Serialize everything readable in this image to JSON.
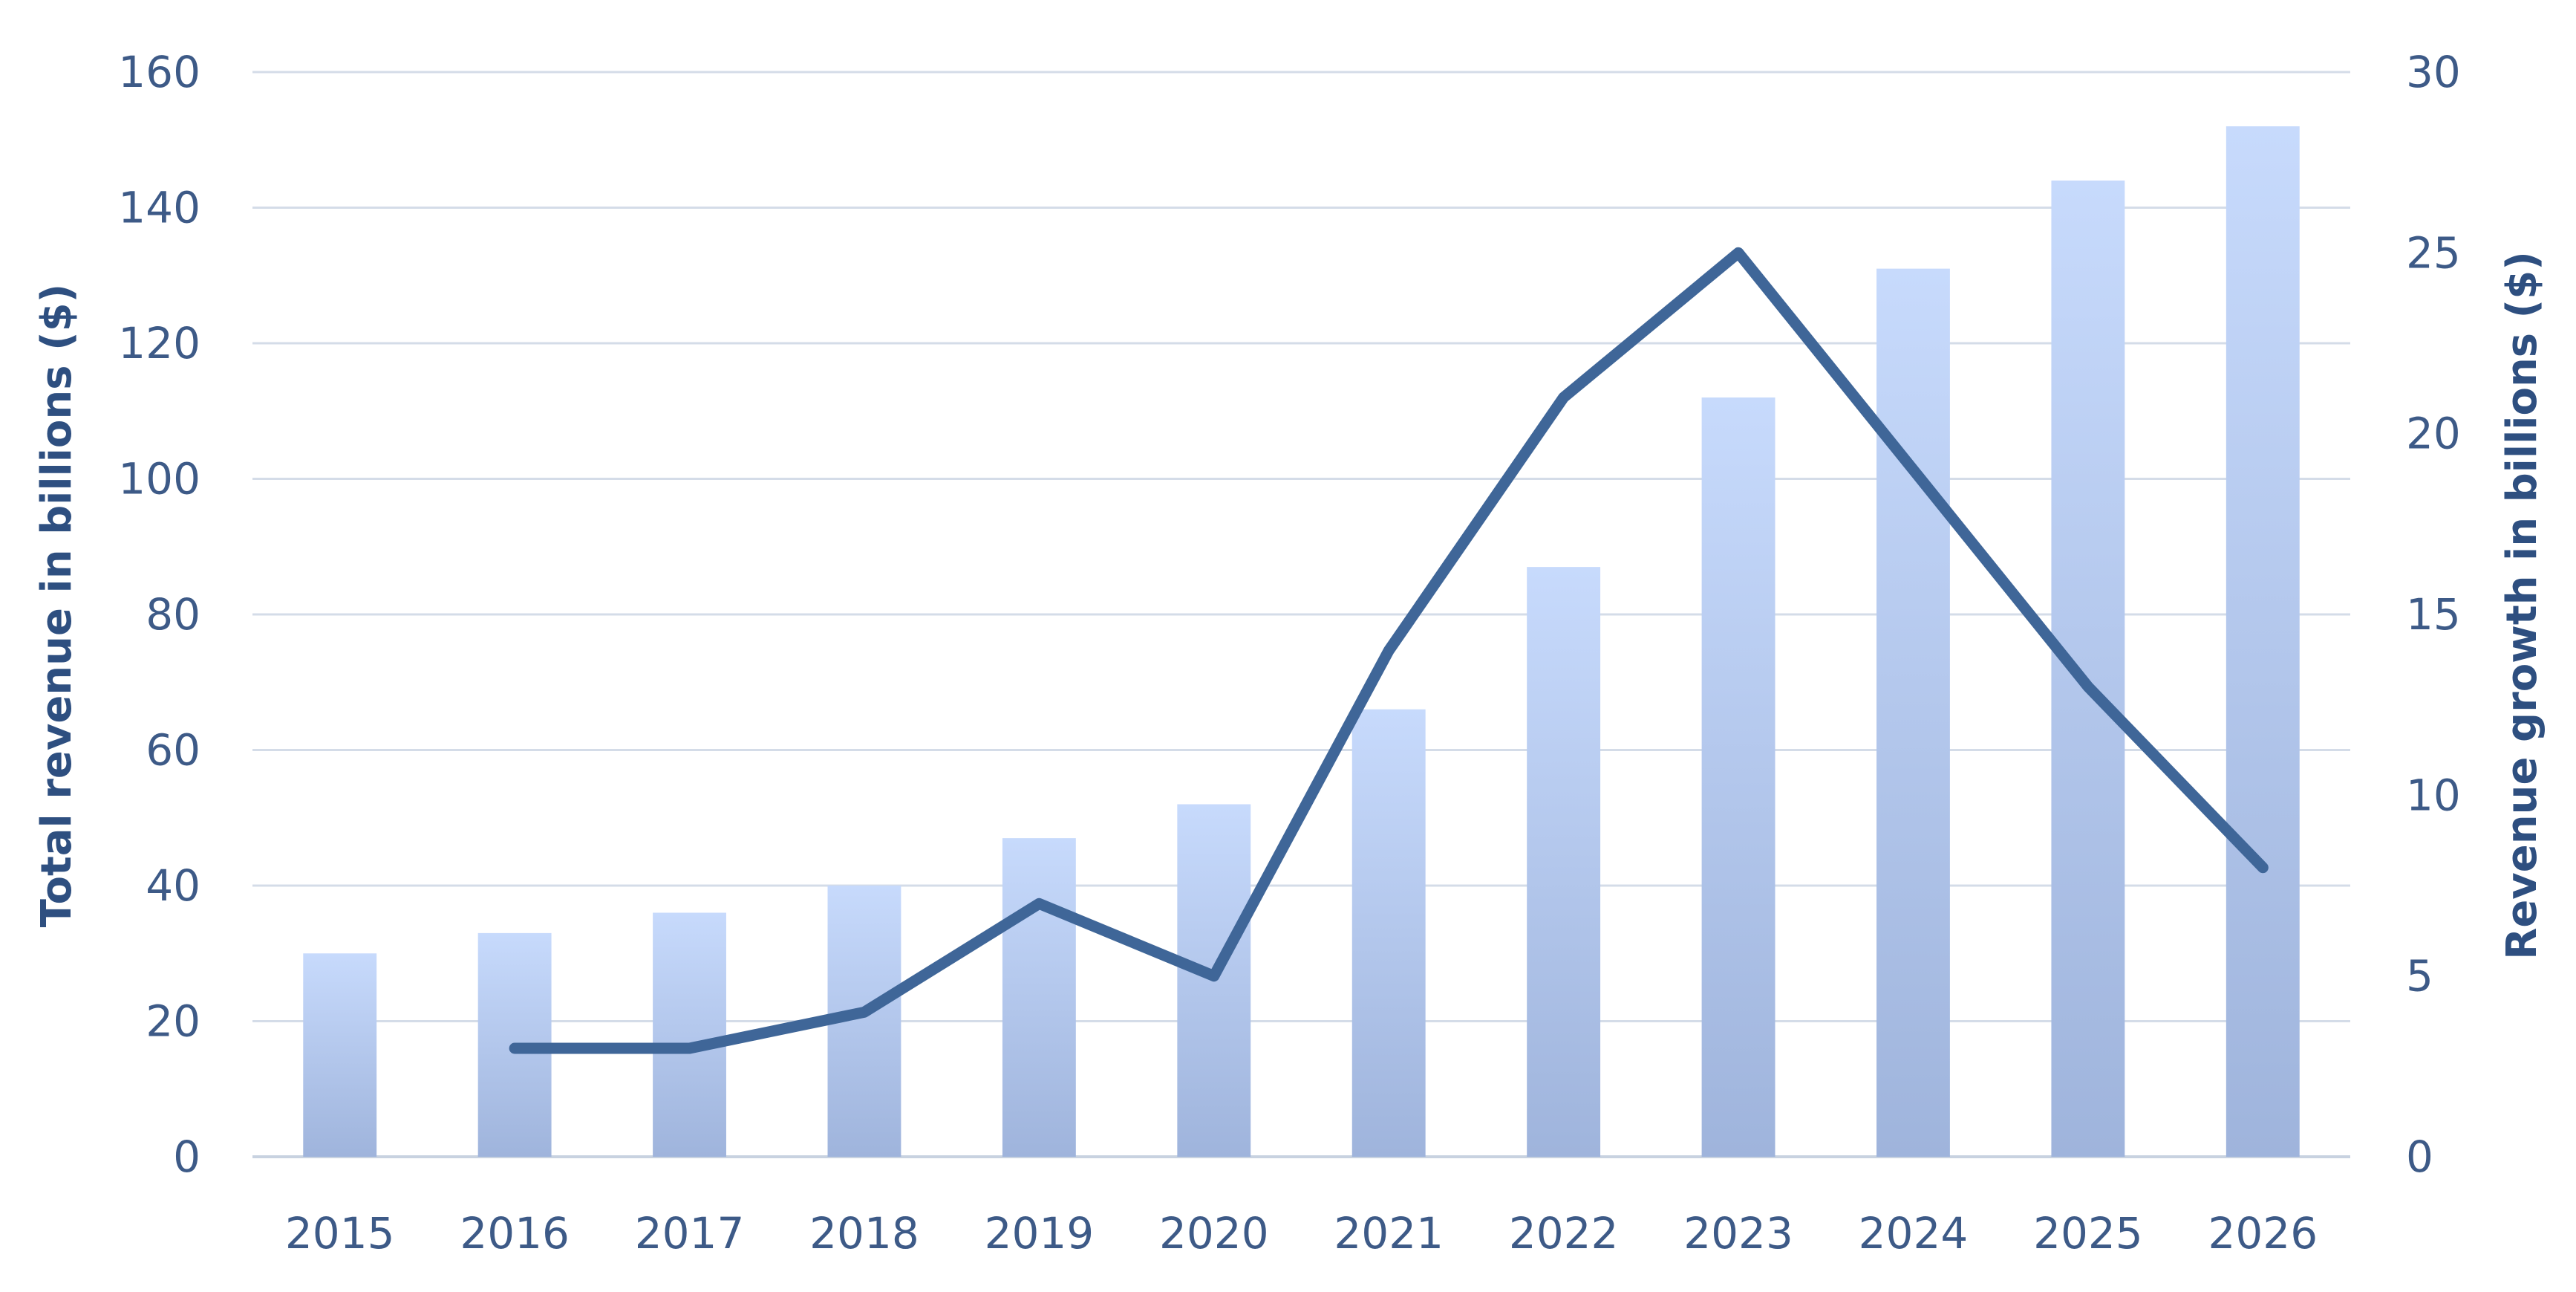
{
  "chart_data": {
    "type": "bar+line",
    "categories": [
      "2015",
      "2016",
      "2017",
      "2018",
      "2019",
      "2020",
      "2021",
      "2022",
      "2023",
      "2024",
      "2025",
      "2026"
    ],
    "series": [
      {
        "type": "bar",
        "axis": "left",
        "values": [
          30,
          33,
          36,
          40,
          47,
          52,
          66,
          87,
          112,
          131,
          144,
          152
        ]
      },
      {
        "type": "line",
        "axis": "right",
        "values": [
          null,
          3,
          3,
          4,
          7,
          5,
          14,
          21,
          25,
          19,
          13,
          8
        ]
      }
    ],
    "ylabel": "Total revenue in billions ($)",
    "y2label": "Revenue growth in billions ($)",
    "ylim": [
      0,
      160
    ],
    "y2lim": [
      0,
      30
    ],
    "yticks": [
      "0",
      "20",
      "40",
      "60",
      "80",
      "100",
      "120",
      "140",
      "160"
    ],
    "y2ticks": [
      "0",
      "5",
      "10",
      "15",
      "20",
      "25",
      "30"
    ],
    "grid": true,
    "legend": "none",
    "colors": {
      "bar_top": "#c7dafc",
      "bar_bottom": "#9fb4dc",
      "line": "#3f6698",
      "text": "#3d5a87",
      "grid": "#d4dce8"
    }
  }
}
